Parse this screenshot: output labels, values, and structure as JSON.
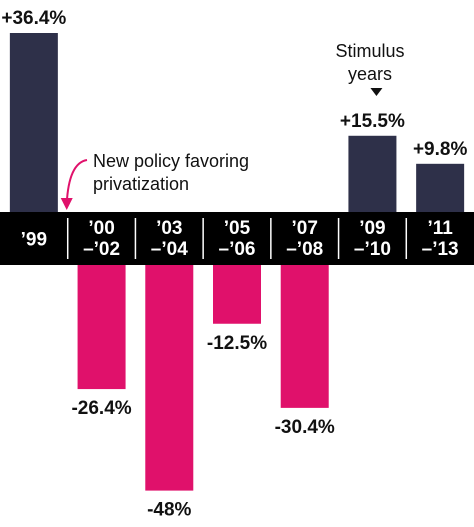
{
  "chart_data": {
    "type": "bar",
    "categories": [
      [
        "’99"
      ],
      [
        "’00",
        "–’02"
      ],
      [
        "’03",
        "–’04"
      ],
      [
        "’05",
        "–’06"
      ],
      [
        "’07",
        "–’08"
      ],
      [
        "’09",
        "–’10"
      ],
      [
        "’11",
        "–’13"
      ]
    ],
    "values": [
      36.4,
      -26.4,
      -48,
      -12.5,
      -30.4,
      15.5,
      9.8
    ],
    "value_labels": [
      "+36.4%",
      "-26.4%",
      "-48%",
      "-12.5%",
      "-30.4%",
      "+15.5%",
      "+9.8%"
    ],
    "ylim": [
      -50,
      36.4
    ],
    "grid": false,
    "colors": {
      "positive": "#2e3049",
      "negative": "#e0116b",
      "axis_band": "#000000",
      "axis_text": "#ffffff",
      "text": "#111111",
      "arrow": "#e0116b"
    },
    "annotations": {
      "policy": {
        "lines": [
          "New policy favoring",
          "privatization"
        ],
        "target_category": 1
      },
      "stimulus": {
        "lines": [
          "Stimulus",
          "years"
        ],
        "target_categories": [
          5,
          6
        ]
      }
    }
  }
}
